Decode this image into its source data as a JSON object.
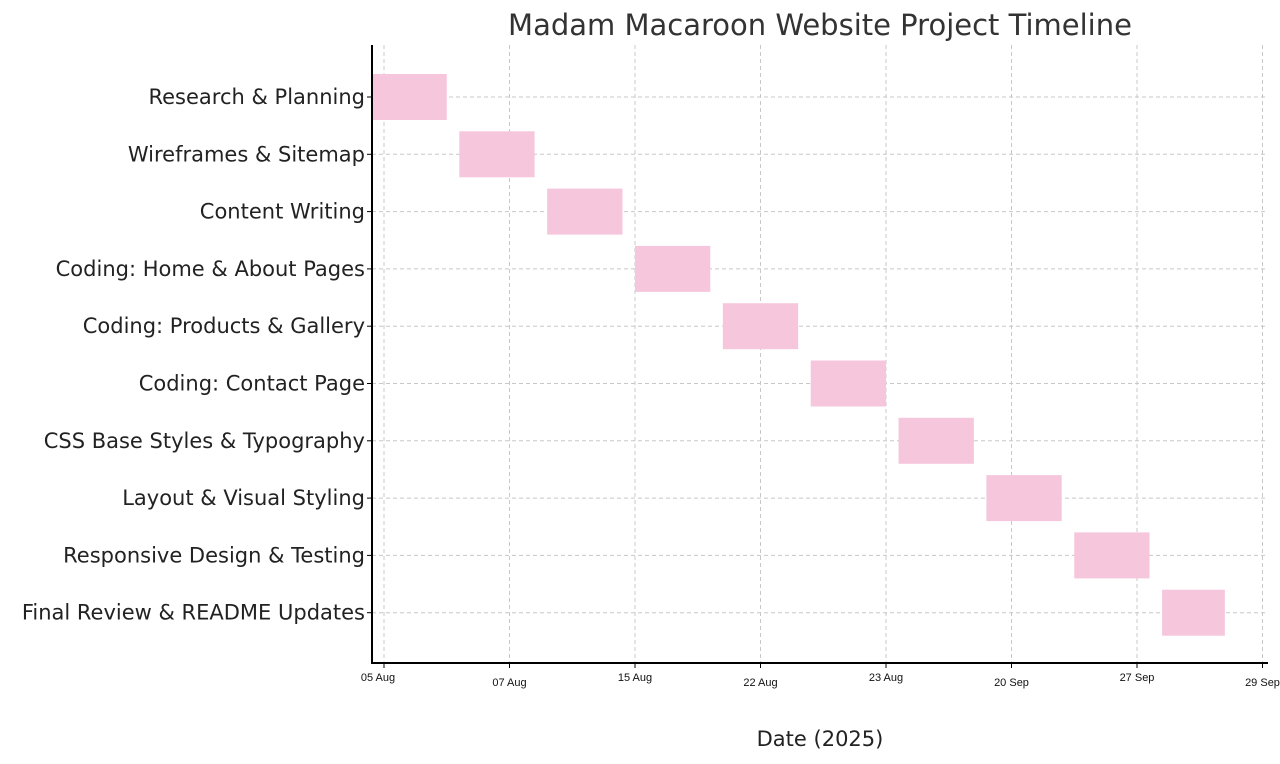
{
  "chart_data": {
    "type": "bar",
    "orientation": "horizontal",
    "title": "Madam Macaroon Website Project Timeline",
    "xlabel": "Date (2025)",
    "ylabel": "",
    "bar_color": "#f6c6dc",
    "grid": true,
    "x_tick_labels": [
      "05 Aug",
      "07 Aug",
      "15 Aug",
      "22 Aug",
      "23 Aug",
      "20 Sep",
      "27 Sep",
      "29 Sep"
    ],
    "xlim": [
      -0.1,
      7.1
    ],
    "tasks": [
      {
        "name": "Research & Planning",
        "start": -0.1,
        "end": 0.5
      },
      {
        "name": "Wireframes & Sitemap",
        "start": 0.6,
        "end": 1.2
      },
      {
        "name": "Content Writing",
        "start": 1.3,
        "end": 1.9
      },
      {
        "name": "Coding: Home & About Pages",
        "start": 2.0,
        "end": 2.6
      },
      {
        "name": "Coding: Products & Gallery",
        "start": 2.7,
        "end": 3.3
      },
      {
        "name": "Coding: Contact Page",
        "start": 3.4,
        "end": 4.0
      },
      {
        "name": "CSS Base Styles & Typography",
        "start": 4.1,
        "end": 4.7
      },
      {
        "name": "Layout & Visual Styling",
        "start": 4.8,
        "end": 5.4
      },
      {
        "name": "Responsive Design & Testing",
        "start": 5.5,
        "end": 6.1
      },
      {
        "name": "Final Review & README Updates",
        "start": 6.2,
        "end": 6.7
      }
    ]
  }
}
